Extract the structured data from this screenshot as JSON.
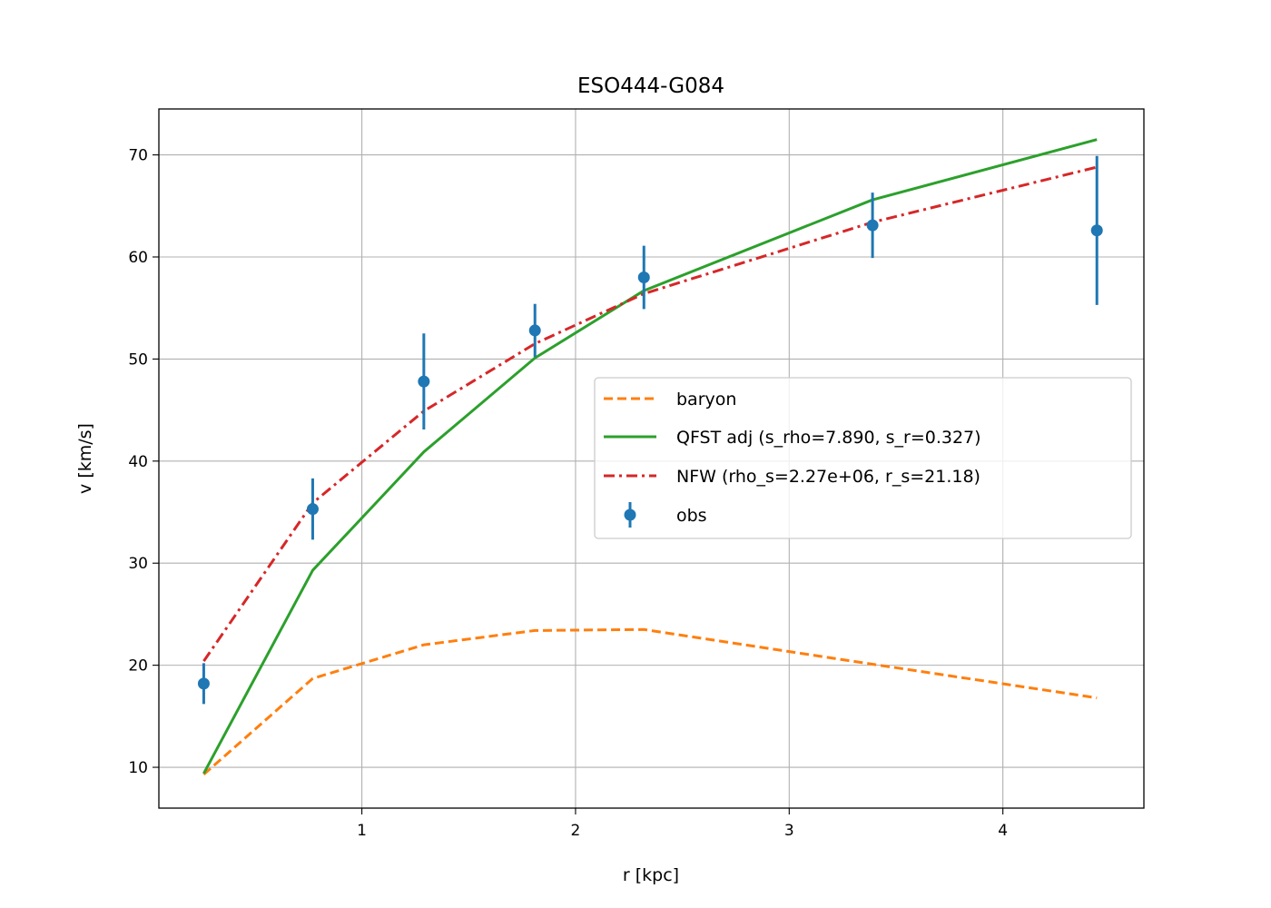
{
  "chart_data": {
    "type": "line",
    "title": "ESO444-G084",
    "xlabel": "r [kpc]",
    "ylabel": "v [km/s]",
    "xlim": [
      0.05,
      4.66
    ],
    "ylim": [
      6.0,
      74.5
    ],
    "xticks": [
      1,
      2,
      3,
      4
    ],
    "yticks": [
      10,
      20,
      30,
      40,
      50,
      60,
      70
    ],
    "grid": true,
    "legend_position": "center-right",
    "colors": {
      "baryon": "#ff7f0e",
      "qfst": "#2ca02c",
      "nfw": "#d62728",
      "obs": "#1f77b4"
    },
    "x": [
      0.26,
      0.77,
      1.29,
      1.81,
      2.32,
      3.39,
      4.44
    ],
    "series": [
      {
        "name": "baryon",
        "style": "dashed",
        "values": [
          9.3,
          18.7,
          22.0,
          23.4,
          23.5,
          20.1,
          16.8
        ]
      },
      {
        "name": "QFST adj (s_rho=7.890, s_r=0.327)",
        "style": "solid",
        "values": [
          9.4,
          29.3,
          40.9,
          50.1,
          56.7,
          65.6,
          71.5
        ]
      },
      {
        "name": "NFW (rho_s=2.27e+06, r_s=21.18)",
        "style": "dashdot",
        "values": [
          20.4,
          35.9,
          44.9,
          51.5,
          56.4,
          63.4,
          68.8
        ]
      }
    ],
    "observations": {
      "name": "obs",
      "y": [
        18.2,
        35.3,
        47.8,
        52.8,
        58.0,
        63.1,
        62.6
      ],
      "yerr": [
        2.0,
        3.0,
        4.7,
        2.6,
        3.1,
        3.2,
        7.3
      ]
    }
  }
}
